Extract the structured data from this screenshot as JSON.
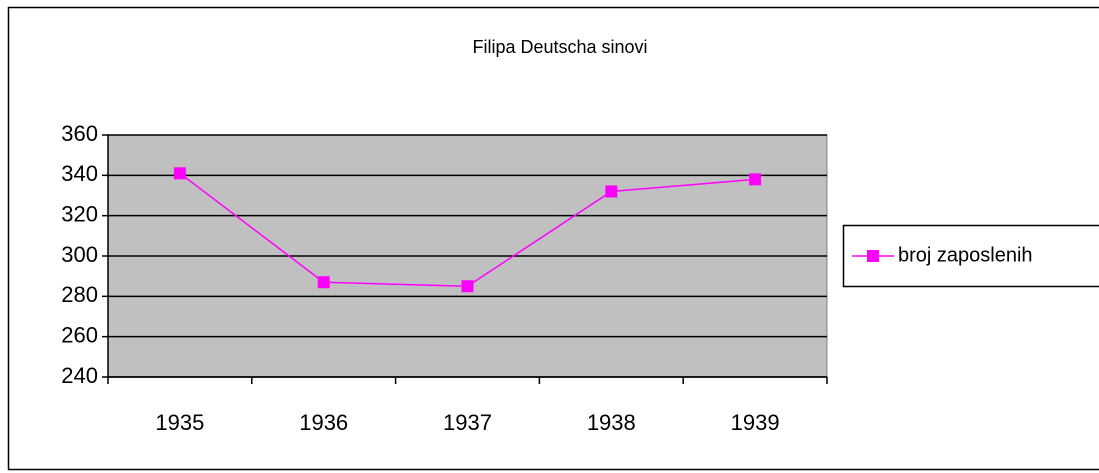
{
  "chart_data": {
    "type": "line",
    "title": "Filipa Deutscha sinovi",
    "categories": [
      "1935",
      "1936",
      "1937",
      "1938",
      "1939"
    ],
    "series": [
      {
        "name": "broj zaposlenih",
        "color": "#ff00ff",
        "values": [
          341,
          287,
          285,
          332,
          338
        ]
      }
    ],
    "ylim": [
      240,
      360
    ],
    "yticks": [
      240,
      260,
      280,
      300,
      320,
      340,
      360
    ],
    "grid": true,
    "legend": "right",
    "plot_background": "#c0c0c0"
  }
}
